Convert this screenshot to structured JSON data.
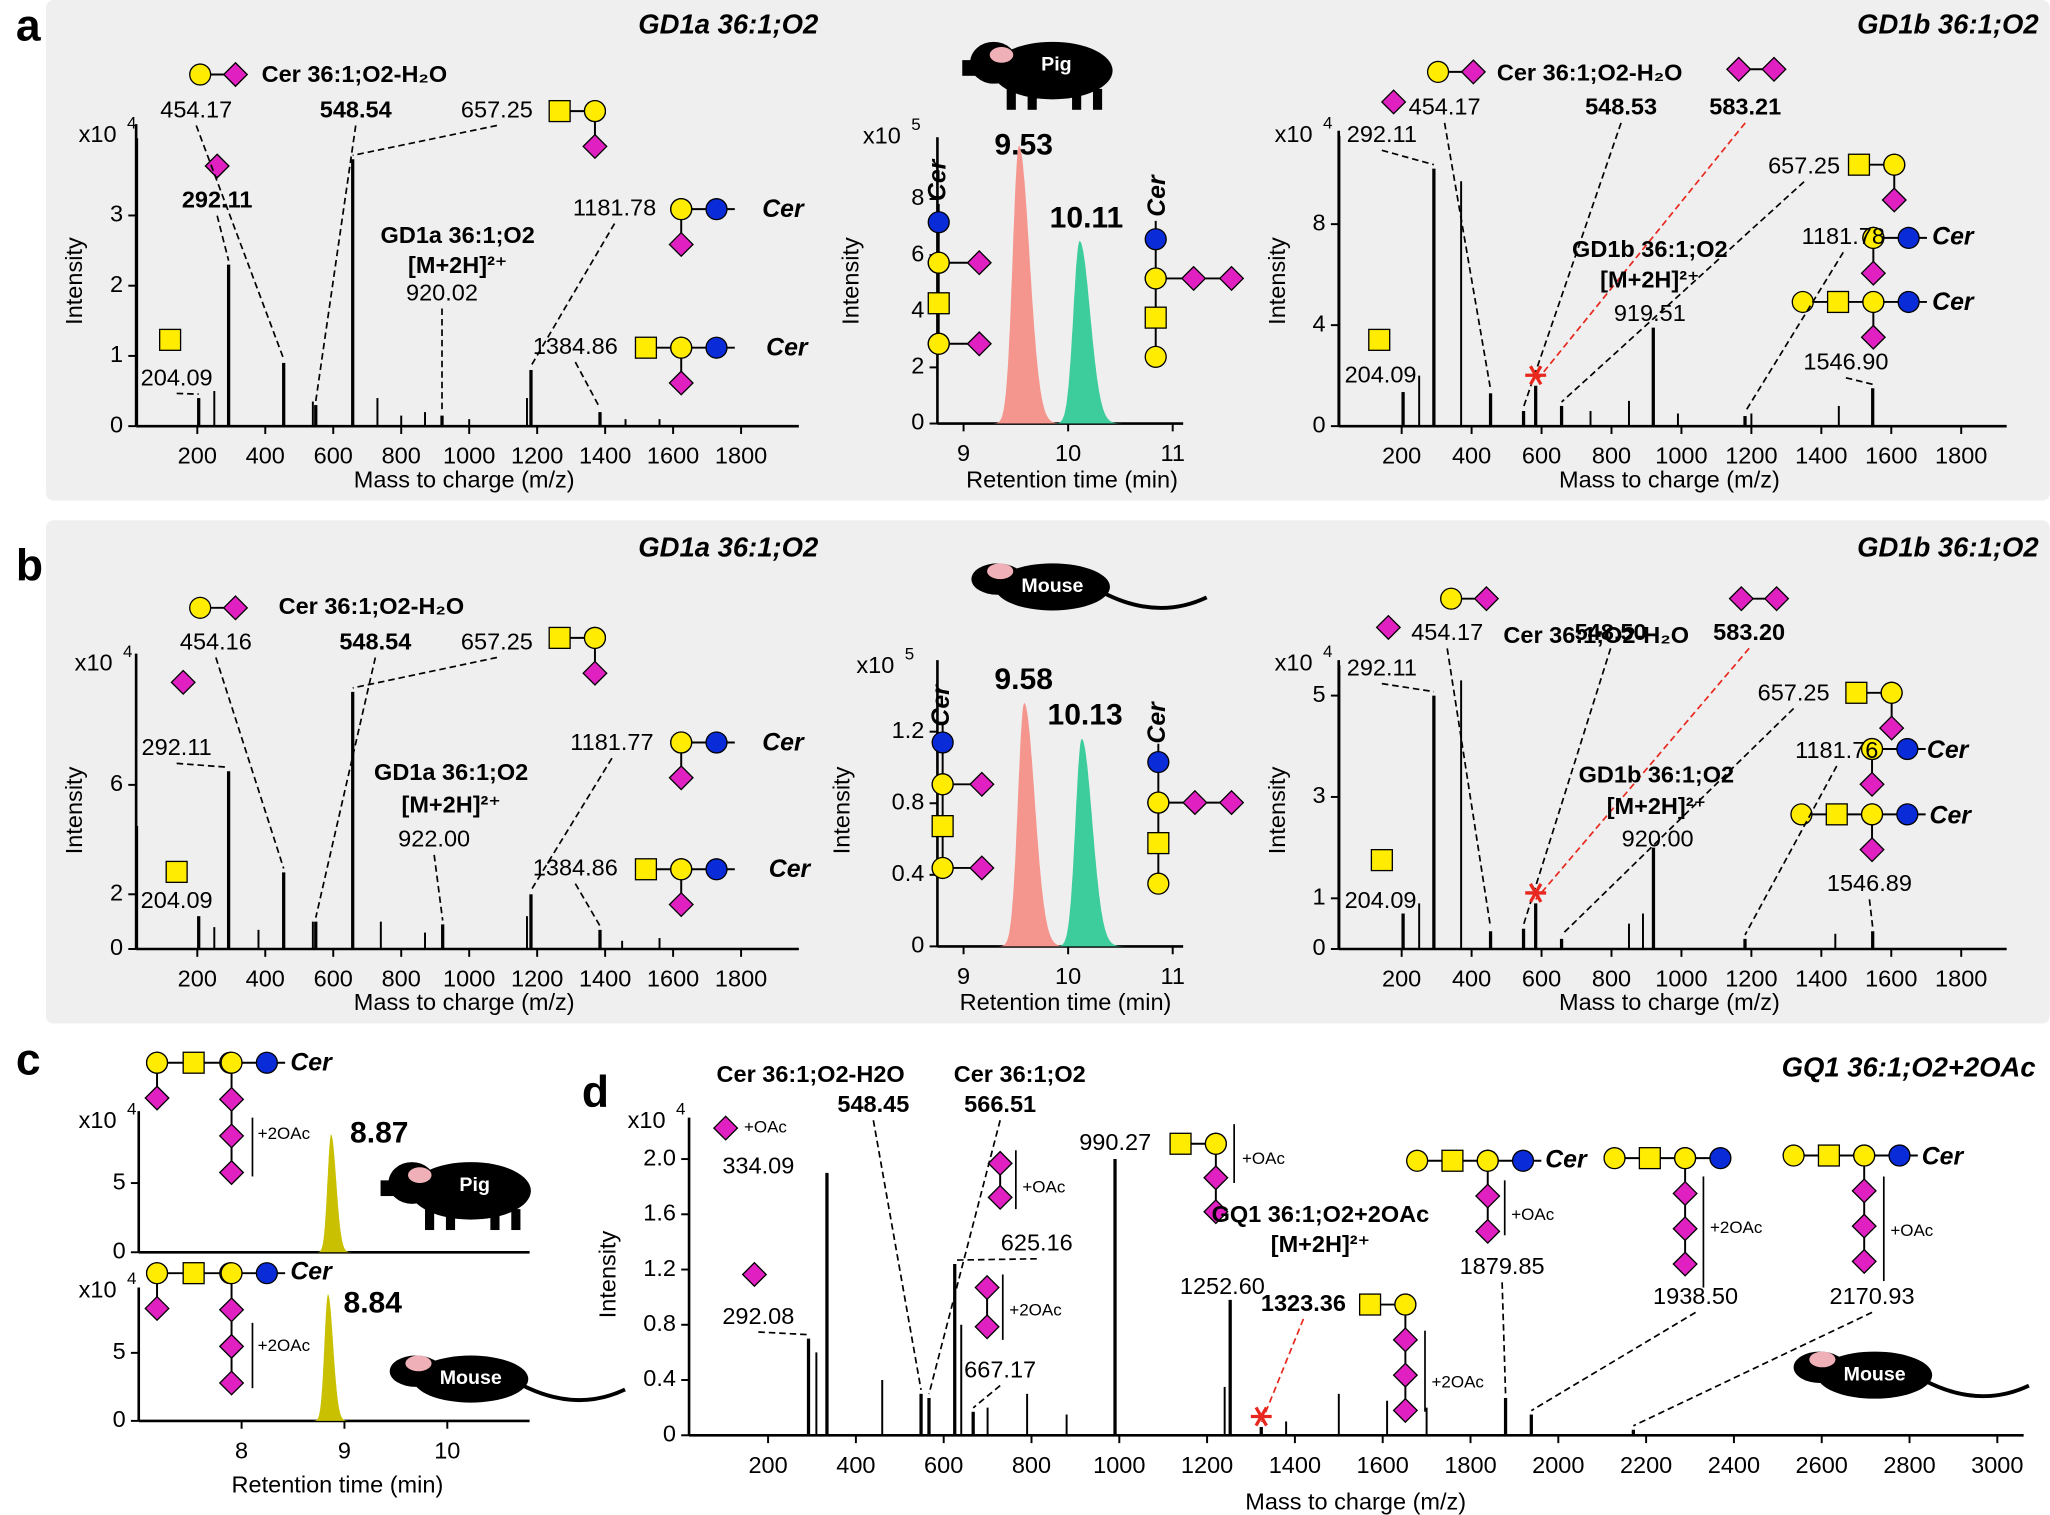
{
  "chart_data": [
    {
      "type": "spectrum",
      "panel": "a",
      "title": "GD1a 36:1;O2",
      "title_color": "#f4968e",
      "xlabel": "Mass to charge (m/z)",
      "ylabel": "Intensity",
      "scale_label": "x10",
      "scale_exponent": 4,
      "xlim": [
        20,
        1970
      ],
      "xticks": [
        200,
        400,
        600,
        800,
        1000,
        1200,
        1400,
        1600,
        1800
      ],
      "ylim": [
        0,
        4.3
      ],
      "yticks": [
        0,
        1,
        2,
        3
      ],
      "color": "#000000",
      "labeled_peaks": {
        "x": [
          204.09,
          292.11,
          454.17,
          548.54,
          657.25,
          920.02,
          1181.78,
          1384.86
        ],
        "labels": [
          "204.09",
          "292.11",
          "454.17",
          "548.54",
          "657.25",
          "920.02",
          "1181.78",
          "1384.86"
        ],
        "values": [
          0.4,
          2.3,
          0.9,
          0.3,
          3.8,
          0.15,
          0.8,
          0.2
        ]
      },
      "peaks": {
        "x": [
          23,
          250,
          540,
          730,
          800,
          870,
          1000,
          1170,
          1460,
          1560
        ],
        "values": [
          4.1,
          0.5,
          0.35,
          0.4,
          0.15,
          0.2,
          0.1,
          0.4,
          0.1,
          0.1
        ]
      },
      "annotations": [
        "Cer 36:1;O2-H₂O",
        "GD1a 36:1;O2",
        "[M+2H]²⁺",
        "Cer",
        "Cer"
      ]
    },
    {
      "type": "chromatogram",
      "animal": "Pig",
      "xlabel": "Retention time (min)",
      "ylabel": "Intensity",
      "scale_label": "x10",
      "scale_exponent": 5,
      "xlim": [
        8.75,
        11.1
      ],
      "xticks": [
        9,
        10,
        11
      ],
      "ylim": [
        0,
        10.2
      ],
      "yticks": [
        0,
        2,
        4,
        6,
        8
      ],
      "peaks": [
        {
          "color": "#f4968e",
          "x": 9.53,
          "value": 9.9
        },
        {
          "color": "#3dcc9c",
          "x": 10.11,
          "value": 6.5
        }
      ],
      "annotations": [
        "Cer",
        "Cer"
      ]
    },
    {
      "type": "spectrum",
      "title": "GD1b 36:1;O2",
      "title_color": "#3dcc9c",
      "xlabel": "Mass to charge (m/z)",
      "ylabel": "Intensity",
      "scale_label": "x10",
      "scale_exponent": 4,
      "xlim": [
        20,
        1930
      ],
      "xticks": [
        200,
        400,
        600,
        800,
        1000,
        1200,
        1400,
        1600,
        1800
      ],
      "ylim": [
        0,
        11.7
      ],
      "yticks": [
        0,
        4,
        8
      ],
      "color": "#000000",
      "labeled_peaks": {
        "x": [
          204.09,
          292.11,
          454.17,
          548.53,
          583.21,
          657.25,
          919.51,
          1181.78,
          1546.9
        ],
        "labels": [
          "204.09",
          "292.11",
          "454.17",
          "548.53",
          "583.21",
          "657.25",
          "919.51",
          "1181.78",
          "1546.90"
        ],
        "values": [
          1.35,
          10.2,
          1.3,
          0.6,
          1.6,
          0.8,
          3.9,
          0.4,
          1.5
        ]
      },
      "peaks": {
        "x": [
          22,
          250,
          370,
          740,
          850,
          990,
          1200,
          1450
        ],
        "values": [
          11.5,
          2.0,
          9.7,
          0.6,
          1.0,
          0.5,
          0.5,
          0.8
        ]
      },
      "annotations": [
        "Cer 36:1;O2-H₂O",
        "GD1b 36:1;O2",
        "[M+2H]²⁺",
        "Cer",
        "Cer"
      ]
    },
    {
      "type": "spectrum",
      "panel": "b",
      "title": "GD1a 36:1;O2",
      "title_color": "#f4968e",
      "xlabel": "Mass to charge (m/z)",
      "ylabel": "Intensity",
      "scale_label": "x10",
      "scale_exponent": 4,
      "xlim": [
        20,
        1970
      ],
      "xticks": [
        200,
        400,
        600,
        800,
        1000,
        1200,
        1400,
        1600,
        1800
      ],
      "ylim": [
        0,
        10.8
      ],
      "yticks": [
        0,
        2,
        6
      ],
      "color": "#000000",
      "labeled_peaks": {
        "x": [
          204.09,
          292.11,
          454.16,
          548.54,
          657.25,
          922.0,
          1181.77,
          1384.86
        ],
        "labels": [
          "204.09",
          "292.11",
          "454.16",
          "548.54",
          "657.25",
          "922.00",
          "1181.77",
          "1384.86"
        ],
        "values": [
          1.2,
          6.5,
          2.8,
          1.0,
          9.4,
          0.9,
          2.0,
          0.7
        ]
      },
      "peaks": {
        "x": [
          23,
          250,
          380,
          540,
          740,
          870,
          1170,
          1450,
          1560
        ],
        "values": [
          4.5,
          0.8,
          0.7,
          1.0,
          1.0,
          0.6,
          1.2,
          0.3,
          0.4
        ]
      },
      "annotations": [
        "Cer 36:1;O2-H₂O",
        "GD1a 36:1;O2",
        "[M+2H]²⁺",
        "Cer",
        "Cer"
      ]
    },
    {
      "type": "chromatogram",
      "animal": "Mouse",
      "xlabel": "Retention time (min)",
      "ylabel": "Intensity",
      "scale_label": "x10",
      "scale_exponent": 5,
      "xlim": [
        8.75,
        11.1
      ],
      "xticks": [
        9,
        10,
        11
      ],
      "ylim": [
        0,
        1.6
      ],
      "yticks": [
        0,
        0.4,
        0.8,
        1.2
      ],
      "peaks": [
        {
          "color": "#f4968e",
          "x": 9.58,
          "value": 1.36
        },
        {
          "color": "#3dcc9c",
          "x": 10.13,
          "value": 1.16
        }
      ],
      "annotations": [
        "Cer",
        "Cer"
      ]
    },
    {
      "type": "spectrum",
      "title": "GD1b 36:1;O2",
      "title_color": "#3dcc9c",
      "xlabel": "Mass to charge (m/z)",
      "ylabel": "Intensity",
      "scale_label": "x10",
      "scale_exponent": 4,
      "xlim": [
        20,
        1930
      ],
      "xticks": [
        200,
        400,
        600,
        800,
        1000,
        1200,
        1400,
        1600,
        1800
      ],
      "ylim": [
        0,
        5.7
      ],
      "yticks": [
        0,
        1,
        3,
        5
      ],
      "color": "#000000",
      "labeled_peaks": {
        "x": [
          204.09,
          292.11,
          454.17,
          548.5,
          583.2,
          657.25,
          920.0,
          1181.76,
          1546.89
        ],
        "labels": [
          "204.09",
          "292.11",
          "454.17",
          "548.50",
          "583.20",
          "657.25",
          "920.00",
          "1181.76",
          "1546.89"
        ],
        "values": [
          0.7,
          5.0,
          0.35,
          0.4,
          0.9,
          0.2,
          2.0,
          0.2,
          0.35
        ]
      },
      "peaks": {
        "x": [
          22,
          250,
          370,
          850,
          890,
          1440
        ],
        "values": [
          5.6,
          0.9,
          5.3,
          0.5,
          0.7,
          0.3
        ]
      },
      "annotations": [
        "Cer 36:1;O2-H₂O",
        "GD1b 36:1;O2",
        "[M+2H]²⁺",
        "Cer",
        "Cer"
      ]
    },
    {
      "type": "chromatogram",
      "panel": "c",
      "animal": "Pig",
      "scale_label": "x10",
      "scale_exponent": 4,
      "xlim": [
        7,
        10.8
      ],
      "ylim": [
        0,
        10.2
      ],
      "yticks": [
        0,
        5
      ],
      "peaks": [
        {
          "color": "#c8c000",
          "x": 8.87,
          "value": 8.5
        }
      ],
      "annotations": [
        "Cer",
        "+2OAc"
      ]
    },
    {
      "type": "chromatogram",
      "animal": "Mouse",
      "xlabel": "Retention time (min)",
      "scale_label": "x10",
      "scale_exponent": 4,
      "xlim": [
        7,
        10.8
      ],
      "xticks": [
        8,
        9,
        10
      ],
      "ylim": [
        0,
        9.8
      ],
      "yticks": [
        0,
        5
      ],
      "peaks": [
        {
          "color": "#c8c000",
          "x": 8.84,
          "value": 9.3
        }
      ],
      "annotations": [
        "Cer",
        "+2OAc"
      ]
    },
    {
      "type": "spectrum",
      "panel": "d",
      "title": "GQ1 36:1;O2+2OAc",
      "title_color": "#c8c000",
      "animal": "Mouse",
      "xlabel": "Mass to charge (m/z)",
      "ylabel": "Intensity",
      "scale_label": "x10",
      "scale_exponent": 4,
      "xlim": [
        20,
        3060
      ],
      "xticks": [
        200,
        400,
        600,
        800,
        1000,
        1200,
        1400,
        1600,
        1800,
        2000,
        2200,
        2400,
        2600,
        2800,
        3000
      ],
      "ylim": [
        0,
        2.3
      ],
      "yticks": [
        0,
        0.4,
        0.8,
        1.2,
        1.6,
        {
          "value": 2,
          "label": "2.0"
        }
      ],
      "color": "#000000",
      "labeled_peaks": {
        "x": [
          292.08,
          334.09,
          548.45,
          566.51,
          625.16,
          667.17,
          990.27,
          1252.6,
          1323.36,
          1879.85,
          1938.5,
          2170.93
        ],
        "labels": [
          "292.08",
          "334.09",
          "548.45",
          "566.51",
          "625.16",
          "667.17",
          "990.27",
          "1252.60",
          "1323.36",
          "1879.85",
          "1938.50",
          "2170.93"
        ],
        "values": [
          0.7,
          1.9,
          0.3,
          0.27,
          1.24,
          0.17,
          2.0,
          0.98,
          0.06,
          0.27,
          0.15,
          0.04
        ]
      },
      "peaks": {
        "x": [
          310,
          460,
          640,
          700,
          790,
          880,
          1240,
          1380,
          1500,
          1610,
          1700
        ],
        "values": [
          0.6,
          0.4,
          0.8,
          0.2,
          0.3,
          0.15,
          0.35,
          0.1,
          0.3,
          0.25,
          0.2
        ]
      },
      "annotations": [
        "Cer 36:1;O2-H2O",
        "Cer 36:1;O2",
        "+OAc",
        "+OAc",
        "+2OAc",
        "+OAc",
        "GQ1 36:1;O2+2OAc",
        "[M+2H]²⁺",
        "+2OAc",
        "Cer",
        "+OAc",
        "+2OAc",
        "Cer",
        "+OAc"
      ]
    }
  ]
}
